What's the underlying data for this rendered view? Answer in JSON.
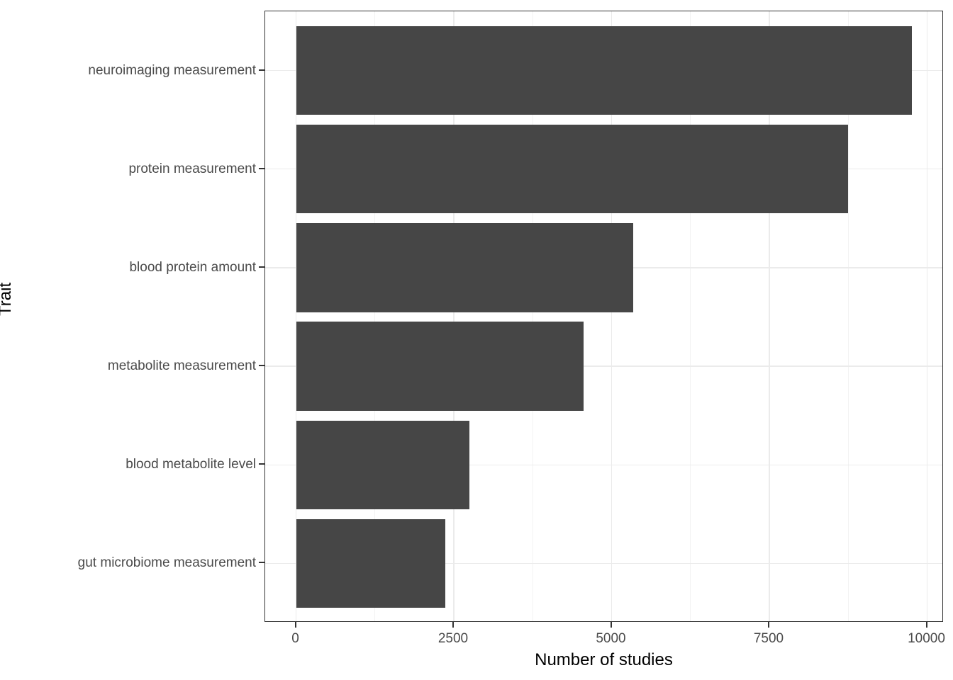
{
  "figure": {
    "background": "#ffffff",
    "bar_color": "#464646",
    "panel_border_color": "#333333",
    "grid_major_color": "#ebebeb",
    "grid_minor_color": "#f2f2f2",
    "axis_text_color": "#4a4a4a",
    "axis_title_color": "#000000",
    "tick_color": "#333333"
  },
  "chart_data": {
    "type": "bar",
    "orientation": "horizontal",
    "title": "",
    "xlabel": "Number of studies",
    "ylabel": "Trait",
    "categories": [
      "neuroimaging measurement",
      "protein measurement",
      "blood protein amount",
      "metabolite measurement",
      "blood metabolite level",
      "gut microbiome measurement"
    ],
    "values": [
      9760,
      8750,
      5340,
      4560,
      2750,
      2360
    ],
    "xlim": [
      0,
      10000
    ],
    "x_major_ticks": [
      0,
      2500,
      5000,
      7500,
      10000
    ],
    "x_tick_labels": [
      "0",
      "2500",
      "5000",
      "7500",
      "10000"
    ],
    "x_minor_ticks": [
      1250,
      3750,
      6250,
      8750
    ],
    "bar_width_fraction": 0.9,
    "grid": true,
    "legend_position": "none"
  }
}
